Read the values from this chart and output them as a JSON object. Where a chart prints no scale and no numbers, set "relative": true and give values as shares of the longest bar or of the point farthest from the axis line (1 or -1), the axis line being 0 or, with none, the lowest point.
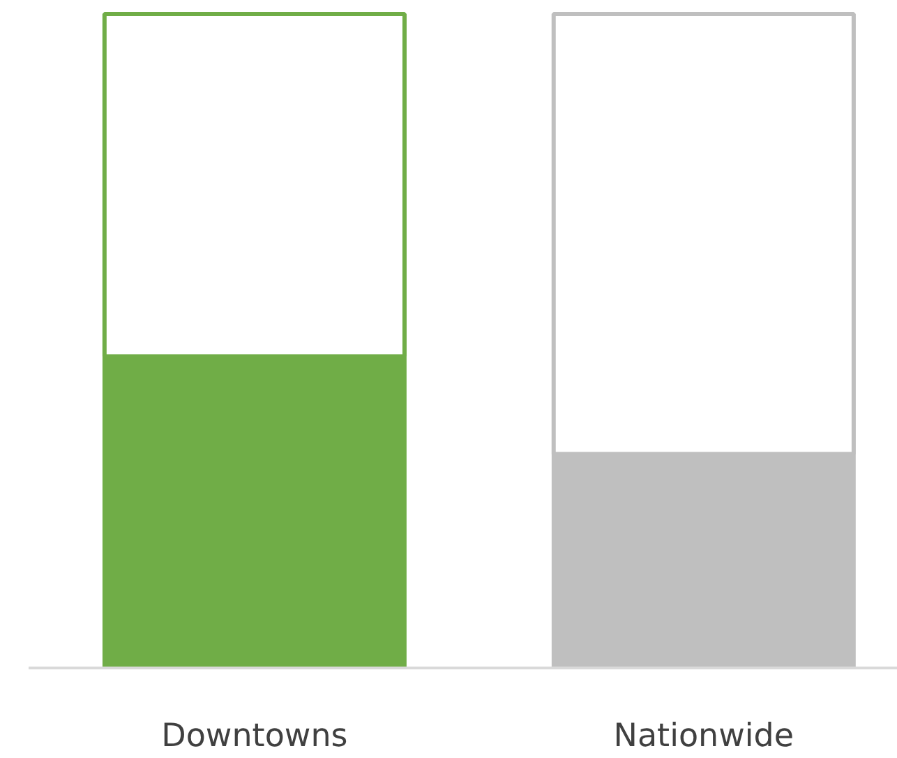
{
  "chart_data": {
    "type": "bar",
    "relative": true,
    "stacked": true,
    "categories": [
      "Downtowns",
      "Nationwide"
    ],
    "series": [
      {
        "colors": [
          "#70ad47",
          "#bfbfbf"
        ],
        "values": [
          0.475,
          0.326
        ]
      },
      {
        "colors": [
          "#70ad47",
          "#bfbfbf"
        ],
        "values": [
          0.525,
          0.674
        ]
      }
    ]
  }
}
